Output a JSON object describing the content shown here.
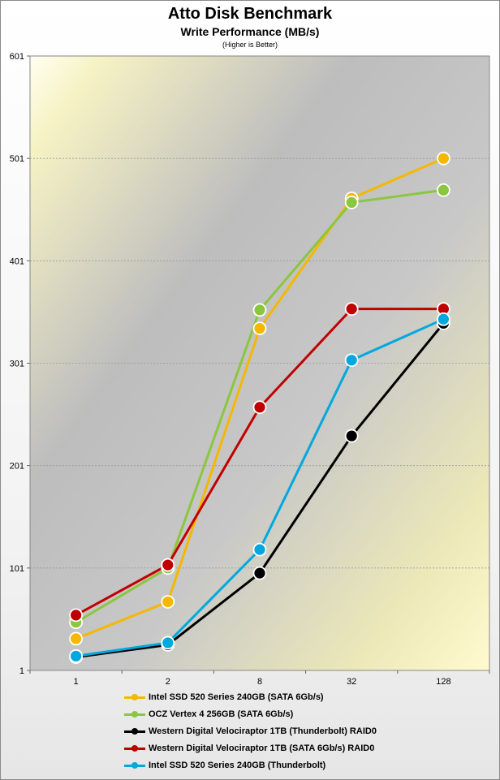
{
  "chart_data": {
    "type": "line",
    "title": "Atto Disk Benchmark",
    "subtitle": "Write Performance (MB/s)",
    "note": "(Higher is Better)",
    "categories": [
      "1",
      "2",
      "8",
      "32",
      "128"
    ],
    "ylim": [
      1,
      601
    ],
    "yticks": [
      "1",
      "101",
      "201",
      "301",
      "401",
      "501",
      "601"
    ],
    "grid": true,
    "legend_position": "bottom",
    "series": [
      {
        "name": "Intel SSD 520 Series 240GB (SATA 6Gb/s)",
        "color": "#f5b800",
        "values": [
          32,
          68,
          335,
          462,
          501
        ]
      },
      {
        "name": "OCZ Vertex 4 256GB (SATA 6Gb/s)",
        "color": "#8cc63f",
        "values": [
          48,
          101,
          353,
          458,
          470
        ]
      },
      {
        "name": "Western Digital Velociraptor 1TB (Thunderbolt) RAID0",
        "color": "#000000",
        "values": [
          14,
          26,
          96,
          230,
          340
        ]
      },
      {
        "name": "Western Digital Velociraptor 1TB (SATA 6Gb/s) RAID0",
        "color": "#c00000",
        "values": [
          55,
          104,
          258,
          354,
          354
        ]
      },
      {
        "name": "Intel SSD 520 Series 240GB (Thunderbolt)",
        "color": "#00a8e0",
        "values": [
          15,
          28,
          119,
          304,
          344
        ]
      }
    ]
  }
}
